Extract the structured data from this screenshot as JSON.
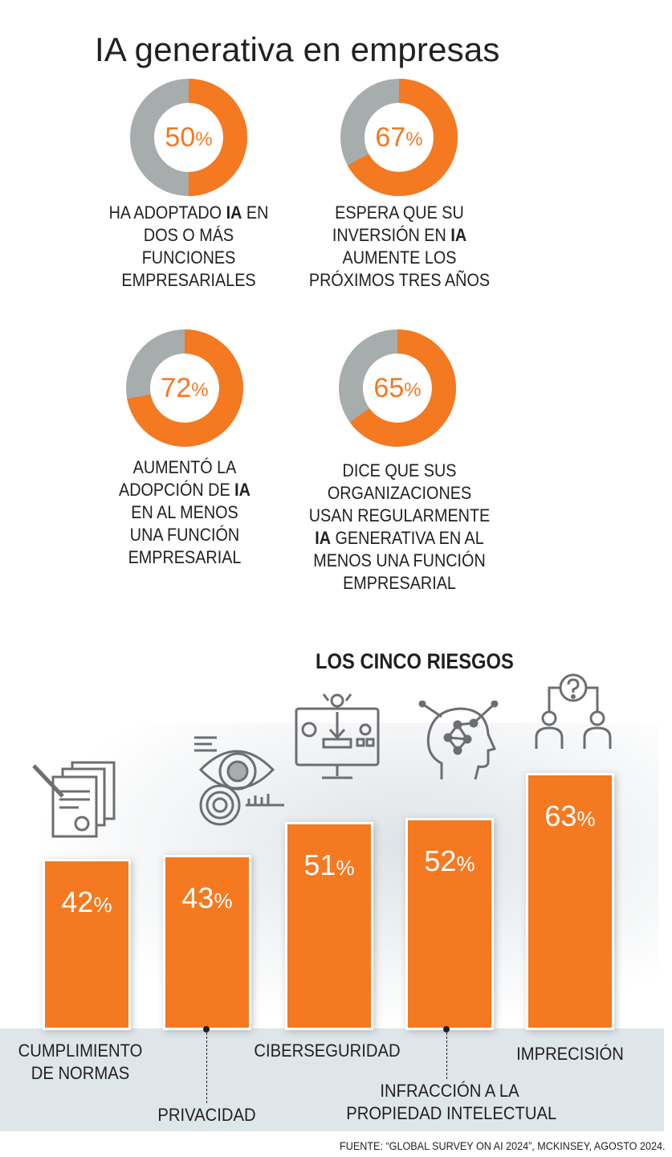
{
  "title": "IA generativa en empresas",
  "colors": {
    "accent": "#f47920",
    "neutral": "#a7acad",
    "text": "#231f20",
    "floor": "#dfe6ea"
  },
  "donuts": [
    {
      "value": 50,
      "number": "50",
      "symbol": "%",
      "caption_pre": "HA ADOPTADO ",
      "caption_bold": "IA",
      "caption_post": " EN\nDOS O MÁS\nFUNCIONES\nEMPRESARIALES"
    },
    {
      "value": 67,
      "number": "67",
      "symbol": "%",
      "caption_pre": "ESPERA QUE SU\nINVERSIÓN EN ",
      "caption_bold": "IA",
      "caption_post": "\nAUMENTE LOS\nPRÓXIMOS TRES AÑOS"
    },
    {
      "value": 72,
      "number": "72",
      "symbol": "%",
      "caption_pre": "AUMENTÓ  LA\nADOPCIÓN DE ",
      "caption_bold": "IA",
      "caption_post": "\nEN AL MENOS\nUNA FUNCIÓN\nEMPRESARIAL"
    },
    {
      "value": 65,
      "number": "65",
      "symbol": "%",
      "caption_pre": "DICE QUE SUS\nORGANIZACIONES\nUSAN REGULARMENTE\n",
      "caption_bold": "IA",
      "caption_post": " GENERATIVA EN AL\nMENOS UNA FUNCIÓN\nEMPRESARIAL"
    }
  ],
  "chart_data": {
    "type": "bar",
    "title": "LOS CINCO RIESGOS",
    "categories": [
      "CUMPLIMIENTO DE NORMAS",
      "PRIVACIDAD",
      "CIBERSEGURIDAD",
      "INFRACCIÓN A LA PROPIEDAD INTELECTUAL",
      "IMPRECISIÓN"
    ],
    "values": [
      42,
      43,
      51,
      52,
      63
    ],
    "value_labels": [
      "42",
      "43",
      "51",
      "52",
      "63"
    ],
    "unit": "%",
    "icons": [
      "document-stamp-icon",
      "eye-fingerprint-icon",
      "monitor-security-icon",
      "ai-brain-icon",
      "question-people-icon"
    ]
  },
  "categories_display": [
    {
      "lines": [
        "CUMPLIMIENTO",
        "DE NORMAS"
      ]
    },
    {
      "lines": [
        "PRIVACIDAD"
      ]
    },
    {
      "lines": [
        "CIBERSEGURIDAD"
      ]
    },
    {
      "lines": [
        "INFRACCIÓN A LA",
        "PROPIEDAD INTELECTUAL"
      ]
    },
    {
      "lines": [
        "IMPRECISIÓN"
      ]
    }
  ],
  "source": "FUENTE: “GLOBAL SURVEY ON AI 2024”, MCKINSEY, AGOSTO 2024."
}
